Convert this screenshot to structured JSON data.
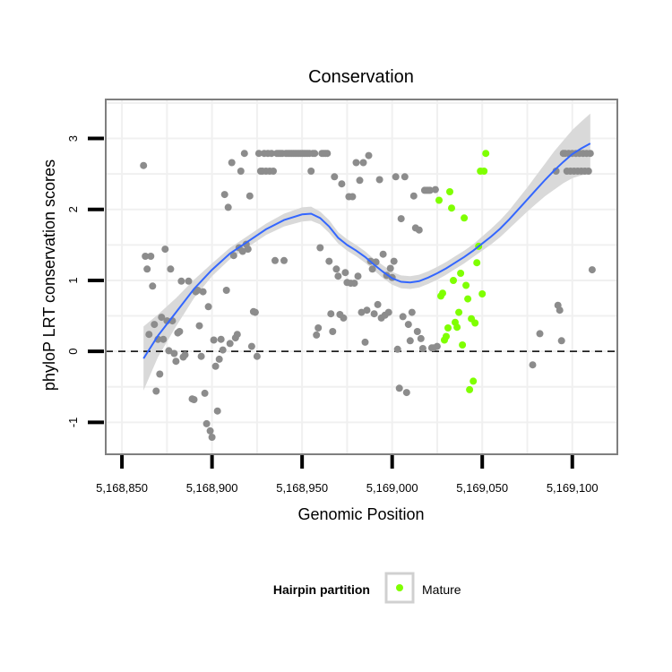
{
  "chart_data": {
    "type": "scatter",
    "title": "Conservation",
    "xlabel": "Genomic Position",
    "ylabel": "phyloP LRT conservation scores",
    "xlim": [
      5168841,
      5169125
    ],
    "ylim": [
      -1.45,
      3.55
    ],
    "x_ticks": [
      5168850,
      5168900,
      5168950,
      5169000,
      5169050,
      5169100
    ],
    "x_tick_labels": [
      "5,168,850",
      "5,168,900",
      "5,168,950",
      "5,169,000",
      "5,169,050",
      "5,169,100"
    ],
    "y_ticks": [
      -1,
      0,
      1,
      2,
      3
    ],
    "y_tick_labels": [
      "-1",
      "0",
      "1",
      "2",
      "3"
    ],
    "grid": true,
    "reference_line": {
      "y": 0,
      "style": "dashed",
      "color": "#000000"
    },
    "legend": {
      "title": "Hairpin partition",
      "position": "bottom",
      "entries": [
        {
          "label": "Mature",
          "color": "#7fff00"
        }
      ]
    },
    "colors": {
      "other": "#8c8c8c",
      "mature": "#7fff00",
      "smooth": "#3366ff",
      "ribbon": "#d9d9d9",
      "panel_border": "#7f7f7f",
      "grid": "#f0f0f0"
    },
    "series": [
      {
        "group": "other",
        "points": [
          [
            5168862,
            2.62
          ],
          [
            5168863,
            1.34
          ],
          [
            5168864,
            1.16
          ],
          [
            5168865,
            0.24
          ],
          [
            5168866,
            1.34
          ],
          [
            5168867,
            0.92
          ],
          [
            5168868,
            0.38
          ],
          [
            5168869,
            -0.56
          ],
          [
            5168870,
            0.17
          ],
          [
            5168871,
            -0.32
          ],
          [
            5168872,
            0.48
          ],
          [
            5168873,
            0.17
          ],
          [
            5168874,
            1.44
          ],
          [
            5168875,
            0.43
          ],
          [
            5168876,
            0.01
          ],
          [
            5168877,
            1.16
          ],
          [
            5168878,
            0.43
          ],
          [
            5168879,
            -0.03
          ],
          [
            5168880,
            -0.14
          ],
          [
            5168881,
            0.26
          ],
          [
            5168882,
            0.28
          ],
          [
            5168883,
            0.99
          ],
          [
            5168884,
            -0.08
          ],
          [
            5168885,
            -0.05
          ],
          [
            5168887,
            0.99
          ],
          [
            5168889,
            -0.67
          ],
          [
            5168890,
            -0.68
          ],
          [
            5168891,
            0.84
          ],
          [
            5168892,
            0.86
          ],
          [
            5168893,
            0.36
          ],
          [
            5168894,
            -0.07
          ],
          [
            5168895,
            0.84
          ],
          [
            5168896,
            -0.59
          ],
          [
            5168897,
            -1.02
          ],
          [
            5168898,
            0.63
          ],
          [
            5168899,
            -1.12
          ],
          [
            5168900,
            -1.21
          ],
          [
            5168901,
            0.16
          ],
          [
            5168902,
            -0.21
          ],
          [
            5168903,
            -0.84
          ],
          [
            5168904,
            -0.11
          ],
          [
            5168905,
            0.17
          ],
          [
            5168906,
            0.02
          ],
          [
            5168907,
            2.21
          ],
          [
            5168908,
            0.86
          ],
          [
            5168909,
            2.03
          ],
          [
            5168910,
            0.11
          ],
          [
            5168911,
            2.66
          ],
          [
            5168912,
            1.35
          ],
          [
            5168913,
            0.19
          ],
          [
            5168914,
            0.24
          ],
          [
            5168915,
            1.46
          ],
          [
            5168916,
            2.54
          ],
          [
            5168917,
            1.41
          ],
          [
            5168918,
            2.79
          ],
          [
            5168919,
            1.51
          ],
          [
            5168920,
            1.44
          ],
          [
            5168921,
            2.19
          ],
          [
            5168922,
            0.07
          ],
          [
            5168923,
            0.56
          ],
          [
            5168924,
            0.55
          ],
          [
            5168925,
            -0.07
          ],
          [
            5168926,
            2.79
          ],
          [
            5168927,
            2.54
          ],
          [
            5168928,
            2.54
          ],
          [
            5168929,
            2.79
          ],
          [
            5168930,
            2.54
          ],
          [
            5168931,
            2.79
          ],
          [
            5168932,
            2.54
          ],
          [
            5168933,
            2.79
          ],
          [
            5168934,
            2.54
          ],
          [
            5168935,
            1.28
          ],
          [
            5168936,
            2.79
          ],
          [
            5168937,
            2.79
          ],
          [
            5168938,
            2.79
          ],
          [
            5168939,
            2.79
          ],
          [
            5168940,
            1.28
          ],
          [
            5168941,
            2.79
          ],
          [
            5168942,
            2.79
          ],
          [
            5168943,
            2.79
          ],
          [
            5168944,
            2.79
          ],
          [
            5168945,
            2.79
          ],
          [
            5168946,
            2.79
          ],
          [
            5168947,
            2.79
          ],
          [
            5168948,
            2.79
          ],
          [
            5168949,
            2.79
          ],
          [
            5168950,
            2.79
          ],
          [
            5168951,
            2.79
          ],
          [
            5168952,
            2.79
          ],
          [
            5168953,
            2.79
          ],
          [
            5168954,
            2.79
          ],
          [
            5168955,
            2.54
          ],
          [
            5168956,
            2.79
          ],
          [
            5168957,
            2.79
          ],
          [
            5168958,
            0.23
          ],
          [
            5168959,
            0.33
          ],
          [
            5168960,
            1.46
          ],
          [
            5168961,
            2.79
          ],
          [
            5168962,
            2.79
          ],
          [
            5168963,
            2.79
          ],
          [
            5168964,
            2.79
          ],
          [
            5168965,
            1.27
          ],
          [
            5168966,
            0.53
          ],
          [
            5168967,
            0.28
          ],
          [
            5168968,
            2.46
          ],
          [
            5168969,
            1.16
          ],
          [
            5168970,
            1.06
          ],
          [
            5168971,
            0.52
          ],
          [
            5168972,
            2.36
          ],
          [
            5168973,
            0.47
          ],
          [
            5168974,
            1.11
          ],
          [
            5168975,
            0.97
          ],
          [
            5168976,
            2.18
          ],
          [
            5168977,
            0.96
          ],
          [
            5168978,
            2.18
          ],
          [
            5168979,
            0.96
          ],
          [
            5168980,
            2.66
          ],
          [
            5168981,
            1.06
          ],
          [
            5168982,
            2.41
          ],
          [
            5168983,
            0.55
          ],
          [
            5168984,
            2.66
          ],
          [
            5168985,
            0.13
          ],
          [
            5168986,
            0.58
          ],
          [
            5168987,
            2.76
          ],
          [
            5168988,
            1.27
          ],
          [
            5168989,
            1.16
          ],
          [
            5168990,
            0.53
          ],
          [
            5168991,
            1.26
          ],
          [
            5168992,
            0.66
          ],
          [
            5168993,
            2.42
          ],
          [
            5168994,
            0.47
          ],
          [
            5168995,
            1.37
          ],
          [
            5168996,
            0.51
          ],
          [
            5168997,
            1.07
          ],
          [
            5168998,
            0.55
          ],
          [
            5168999,
            1.17
          ],
          [
            5169000,
            1.04
          ],
          [
            5169001,
            1.27
          ],
          [
            5169002,
            2.46
          ],
          [
            5169003,
            0.03
          ],
          [
            5169004,
            -0.52
          ],
          [
            5169005,
            1.87
          ],
          [
            5169006,
            0.49
          ],
          [
            5169007,
            2.46
          ],
          [
            5169008,
            -0.58
          ],
          [
            5169009,
            0.38
          ],
          [
            5169010,
            0.15
          ],
          [
            5169011,
            0.55
          ],
          [
            5169012,
            2.19
          ],
          [
            5169013,
            1.74
          ],
          [
            5169014,
            0.28
          ],
          [
            5169015,
            1.71
          ],
          [
            5169016,
            0.18
          ],
          [
            5169017,
            0.04
          ],
          [
            5169018,
            2.27
          ],
          [
            5169019,
            2.27
          ],
          [
            5169020,
            2.27
          ],
          [
            5169021,
            2.27
          ],
          [
            5169022,
            0.05
          ],
          [
            5169023,
            0.05
          ],
          [
            5169024,
            2.28
          ],
          [
            5169025,
            0.07
          ],
          [
            5169078,
            -0.19
          ],
          [
            5169082,
            0.25
          ],
          [
            5169091,
            2.54
          ],
          [
            5169092,
            0.65
          ],
          [
            5169093,
            0.58
          ],
          [
            5169094,
            0.15
          ],
          [
            5169095,
            2.79
          ],
          [
            5169096,
            2.79
          ],
          [
            5169097,
            2.54
          ],
          [
            5169098,
            2.79
          ],
          [
            5169099,
            2.54
          ],
          [
            5169100,
            2.79
          ],
          [
            5169101,
            2.54
          ],
          [
            5169102,
            2.79
          ],
          [
            5169103,
            2.54
          ],
          [
            5169104,
            2.79
          ],
          [
            5169105,
            2.54
          ],
          [
            5169106,
            2.79
          ],
          [
            5169107,
            2.54
          ],
          [
            5169108,
            2.79
          ],
          [
            5169109,
            2.54
          ],
          [
            5169110,
            2.79
          ],
          [
            5169111,
            1.15
          ]
        ]
      },
      {
        "group": "mature",
        "name": "Mature",
        "points": [
          [
            5169026,
            2.13
          ],
          [
            5169027,
            0.78
          ],
          [
            5169028,
            0.82
          ],
          [
            5169029,
            0.16
          ],
          [
            5169030,
            0.21
          ],
          [
            5169031,
            0.33
          ],
          [
            5169032,
            2.25
          ],
          [
            5169033,
            2.02
          ],
          [
            5169034,
            1.0
          ],
          [
            5169035,
            0.41
          ],
          [
            5169036,
            0.34
          ],
          [
            5169037,
            0.55
          ],
          [
            5169038,
            1.1
          ],
          [
            5169039,
            0.09
          ],
          [
            5169040,
            1.88
          ],
          [
            5169041,
            0.93
          ],
          [
            5169042,
            0.74
          ],
          [
            5169043,
            -0.54
          ],
          [
            5169044,
            0.46
          ],
          [
            5169045,
            -0.42
          ],
          [
            5169046,
            0.4
          ],
          [
            5169047,
            1.25
          ],
          [
            5169048,
            1.48
          ],
          [
            5169049,
            2.54
          ],
          [
            5169050,
            0.81
          ],
          [
            5169051,
            2.54
          ],
          [
            5169052,
            2.79
          ]
        ]
      }
    ],
    "smooth_line": [
      [
        5168862,
        -0.1
      ],
      [
        5168870,
        0.22
      ],
      [
        5168880,
        0.55
      ],
      [
        5168890,
        0.88
      ],
      [
        5168900,
        1.15
      ],
      [
        5168910,
        1.38
      ],
      [
        5168920,
        1.55
      ],
      [
        5168930,
        1.72
      ],
      [
        5168940,
        1.85
      ],
      [
        5168950,
        1.93
      ],
      [
        5168955,
        1.94
      ],
      [
        5168960,
        1.88
      ],
      [
        5168965,
        1.76
      ],
      [
        5168970,
        1.6
      ],
      [
        5168975,
        1.5
      ],
      [
        5168980,
        1.42
      ],
      [
        5168985,
        1.33
      ],
      [
        5168990,
        1.22
      ],
      [
        5168995,
        1.12
      ],
      [
        5169000,
        1.03
      ],
      [
        5169005,
        0.98
      ],
      [
        5169010,
        0.97
      ],
      [
        5169015,
        0.99
      ],
      [
        5169020,
        1.04
      ],
      [
        5169025,
        1.1
      ],
      [
        5169030,
        1.17
      ],
      [
        5169035,
        1.25
      ],
      [
        5169040,
        1.33
      ],
      [
        5169045,
        1.42
      ],
      [
        5169050,
        1.52
      ],
      [
        5169055,
        1.62
      ],
      [
        5169060,
        1.73
      ],
      [
        5169065,
        1.86
      ],
      [
        5169070,
        2.0
      ],
      [
        5169075,
        2.14
      ],
      [
        5169080,
        2.28
      ],
      [
        5169085,
        2.42
      ],
      [
        5169090,
        2.55
      ],
      [
        5169095,
        2.67
      ],
      [
        5169100,
        2.78
      ],
      [
        5169105,
        2.86
      ],
      [
        5169110,
        2.93
      ]
    ],
    "smooth_band_halfwidth": [
      0.45,
      0.3,
      0.2,
      0.13,
      0.09,
      0.08,
      0.08,
      0.08,
      0.09,
      0.1,
      0.1,
      0.09,
      0.09,
      0.08,
      0.08,
      0.08,
      0.08,
      0.08,
      0.09,
      0.09,
      0.09,
      0.09,
      0.09,
      0.09,
      0.09,
      0.09,
      0.09,
      0.09,
      0.09,
      0.1,
      0.11,
      0.12,
      0.13,
      0.15,
      0.17,
      0.2,
      0.23,
      0.27,
      0.3,
      0.34,
      0.38,
      0.42
    ]
  }
}
